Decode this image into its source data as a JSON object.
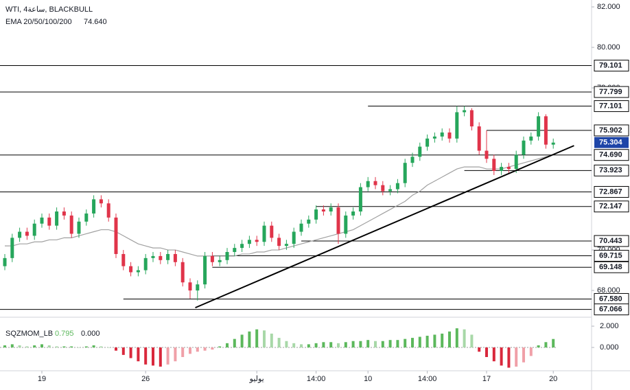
{
  "chart_data": {
    "type": "candlestick",
    "title": "WTI, 4ساعة, BLACKBULL",
    "categories": [
      null,
      null,
      null,
      null,
      null,
      "19",
      null,
      null,
      null,
      null,
      null,
      null,
      null,
      null,
      null,
      null,
      null,
      null,
      null,
      "26",
      null,
      null,
      null,
      null,
      null,
      null,
      null,
      null,
      null,
      null,
      null,
      null,
      null,
      null,
      "يوليو",
      null,
      null,
      null,
      null,
      null,
      null,
      null,
      "14:00",
      null,
      null,
      null,
      null,
      null,
      null,
      "10",
      null,
      null,
      null,
      null,
      null,
      null,
      null,
      "14:00",
      null,
      null,
      null,
      null,
      null,
      null,
      null,
      "17",
      null,
      null,
      null,
      null,
      null,
      null,
      null,
      null,
      "20"
    ],
    "open": [
      69.2,
      69.6,
      70.6,
      70.9,
      70.7,
      71.3,
      71.6,
      71.2,
      71.9,
      71.7,
      70.8,
      71.4,
      71.8,
      72.5,
      72.3,
      71.6,
      69.8,
      69.2,
      68.9,
      69.0,
      69.6,
      69.7,
      69.5,
      69.8,
      69.4,
      68.4,
      68.0,
      68.3,
      69.7,
      69.4,
      69.5,
      69.9,
      70.1,
      70.3,
      70.5,
      70.4,
      71.2,
      70.6,
      70.2,
      70.3,
      70.9,
      71.3,
      71.5,
      72.0,
      71.9,
      72.1,
      70.8,
      71.7,
      71.9,
      73.1,
      73.4,
      73.2,
      72.9,
      73.0,
      73.3,
      74.3,
      74.6,
      75.1,
      75.5,
      75.6,
      75.8,
      75.5,
      76.8,
      76.9,
      76.1,
      74.9,
      74.5,
      73.9,
      74.1,
      74.0,
      74.7,
      75.4,
      75.6,
      76.6,
      75.2
    ],
    "high": [
      69.8,
      70.8,
      71.1,
      71.1,
      71.5,
      71.8,
      71.8,
      72.1,
      72.1,
      71.9,
      71.6,
      72.0,
      72.7,
      72.7,
      72.5,
      71.8,
      70.0,
      69.4,
      69.2,
      69.8,
      69.9,
      69.9,
      70.0,
      70.0,
      69.6,
      68.6,
      68.5,
      69.9,
      69.9,
      69.7,
      70.1,
      70.3,
      70.5,
      70.7,
      70.7,
      71.4,
      71.4,
      70.8,
      70.5,
      71.1,
      71.5,
      71.7,
      72.2,
      72.2,
      72.3,
      72.3,
      71.9,
      72.1,
      73.3,
      73.6,
      73.6,
      73.4,
      73.2,
      73.5,
      74.5,
      74.8,
      75.3,
      75.7,
      75.8,
      76.0,
      76.0,
      77.1,
      77.1,
      77.0,
      76.3,
      75.9,
      74.7,
      74.3,
      74.3,
      74.9,
      75.6,
      75.8,
      76.8,
      76.7,
      75.5
    ],
    "low": [
      69.0,
      69.4,
      70.4,
      70.5,
      70.5,
      71.1,
      71.0,
      71.0,
      71.5,
      70.6,
      70.6,
      71.2,
      71.6,
      72.1,
      71.4,
      69.6,
      69.0,
      68.7,
      68.7,
      68.8,
      69.4,
      69.3,
      69.3,
      69.2,
      68.2,
      67.6,
      67.5,
      68.1,
      69.2,
      69.2,
      69.3,
      69.7,
      69.9,
      70.1,
      70.2,
      70.2,
      70.4,
      70.0,
      70.0,
      70.1,
      70.7,
      71.1,
      71.3,
      71.7,
      71.7,
      70.3,
      70.6,
      71.5,
      71.7,
      72.9,
      73.0,
      72.7,
      72.7,
      72.8,
      73.1,
      74.1,
      74.4,
      74.9,
      75.3,
      75.4,
      75.3,
      75.3,
      76.6,
      75.9,
      74.7,
      74.3,
      73.7,
      73.7,
      73.8,
      73.8,
      74.5,
      75.2,
      75.4,
      75.0,
      75.0
    ],
    "close": [
      69.6,
      70.6,
      70.9,
      70.7,
      71.3,
      71.6,
      71.2,
      71.9,
      71.7,
      70.8,
      71.4,
      71.8,
      72.5,
      72.3,
      71.6,
      69.8,
      69.2,
      68.9,
      69.0,
      69.6,
      69.7,
      69.5,
      69.8,
      69.4,
      68.4,
      68.0,
      68.3,
      69.7,
      69.4,
      69.5,
      69.9,
      70.1,
      70.3,
      70.5,
      70.4,
      71.2,
      70.6,
      70.2,
      70.3,
      70.9,
      71.3,
      71.5,
      72.0,
      71.9,
      72.1,
      70.8,
      71.7,
      71.9,
      73.1,
      73.4,
      73.2,
      72.9,
      73.0,
      73.3,
      74.3,
      74.6,
      75.1,
      75.5,
      75.6,
      75.8,
      75.5,
      76.8,
      76.9,
      76.1,
      74.9,
      74.5,
      73.9,
      74.1,
      74.0,
      74.7,
      75.4,
      75.6,
      76.6,
      75.2,
      75.3
    ],
    "up_color": "#26a65b",
    "down_color": "#e0344a",
    "ylim": [
      66.68,
      82.34
    ],
    "yticks": [
      {
        "value": 82,
        "label": "82.000"
      },
      {
        "value": 80,
        "label": "80.000"
      },
      {
        "value": 78,
        "label": "78.000"
      },
      {
        "value": 70,
        "label": "70.000"
      },
      {
        "value": 68,
        "label": "68.000"
      }
    ],
    "ema": {
      "name": "EMA 20/50/100/200",
      "last": {
        "value": 74.64,
        "label": "74.640"
      },
      "color": "#a0a0a0",
      "values": [
        70.2,
        70.2,
        70.3,
        70.3,
        70.4,
        70.4,
        70.5,
        70.5,
        70.6,
        70.6,
        70.7,
        70.8,
        70.9,
        71.0,
        71.0,
        70.9,
        70.7,
        70.5,
        70.3,
        70.2,
        70.1,
        70.1,
        70.0,
        70.0,
        69.9,
        69.8,
        69.7,
        69.7,
        69.7,
        69.7,
        69.7,
        69.7,
        69.8,
        69.8,
        69.9,
        69.9,
        70.0,
        70.0,
        70.1,
        70.2,
        70.3,
        70.4,
        70.5,
        70.6,
        70.7,
        70.8,
        70.9,
        71.0,
        71.2,
        71.4,
        71.6,
        71.8,
        72.0,
        72.2,
        72.4,
        72.7,
        72.9,
        73.2,
        73.4,
        73.6,
        73.8,
        74.0,
        74.1,
        74.1,
        74.1,
        74.0,
        74.0,
        74.0,
        74.1,
        74.2,
        74.3,
        74.4,
        74.5,
        74.6,
        74.7
      ]
    },
    "levels": [
      {
        "value": 79.101,
        "from": 0
      },
      {
        "value": 77.799,
        "from": 0
      },
      {
        "value": 77.101,
        "from": 49
      },
      {
        "value": 75.902,
        "from": 65
      },
      {
        "value": 74.69,
        "label": "74.690",
        "from": 0
      },
      {
        "value": 73.923,
        "from": 62
      },
      {
        "value": 72.867,
        "from": 0
      },
      {
        "value": 72.147,
        "from": 42
      },
      {
        "value": 70.443,
        "from": 40
      },
      {
        "value": 69.715,
        "from": 28
      },
      {
        "value": 69.148,
        "from": 28
      },
      {
        "value": 67.58,
        "label": "67.580",
        "from": 16
      },
      {
        "value": 67.066,
        "from": 0
      }
    ],
    "last_price": {
      "value": 75.304,
      "color": "#1e45a8"
    },
    "trendline": {
      "points": [
        [
          25.7,
          67.15
        ],
        [
          76.8,
          75.15
        ]
      ]
    },
    "momentum": {
      "name": "SQZMOM_LB",
      "zero": {
        "value": 0,
        "label": "0.000"
      },
      "ylim": [
        -2.19,
        2.84
      ],
      "yticks": [
        {
          "value": 2,
          "label": "2.000"
        },
        {
          "value": 0,
          "label": "0.000"
        }
      ],
      "colors": [
        "#5cb85c",
        "#a8d8a8",
        "#d9283c",
        "#f0a0a8"
      ],
      "values": [
        0.2,
        0.3,
        0.2,
        0.1,
        0.2,
        0.3,
        0.2,
        0.1,
        0.1,
        0.1,
        0.0,
        0.1,
        0.2,
        0.1,
        0.0,
        -0.3,
        -0.7,
        -1.0,
        -1.3,
        -1.6,
        -1.7,
        -1.8,
        -1.6,
        -1.3,
        -0.9,
        -0.6,
        -0.4,
        -0.3,
        -0.2,
        0.1,
        0.4,
        0.8,
        1.2,
        1.5,
        1.7,
        1.6,
        1.3,
        0.9,
        0.6,
        0.4,
        0.3,
        0.3,
        0.4,
        0.5,
        0.5,
        0.4,
        0.5,
        0.6,
        0.6,
        0.7,
        0.6,
        0.6,
        0.7,
        0.7,
        0.8,
        0.9,
        1.0,
        1.1,
        1.2,
        1.3,
        1.5,
        1.8,
        1.7,
        1.2,
        -0.4,
        -0.9,
        -1.3,
        -1.7,
        -1.9,
        -1.8,
        -1.4,
        -0.8,
        0.2,
        0.5,
        0.795
      ]
    }
  }
}
